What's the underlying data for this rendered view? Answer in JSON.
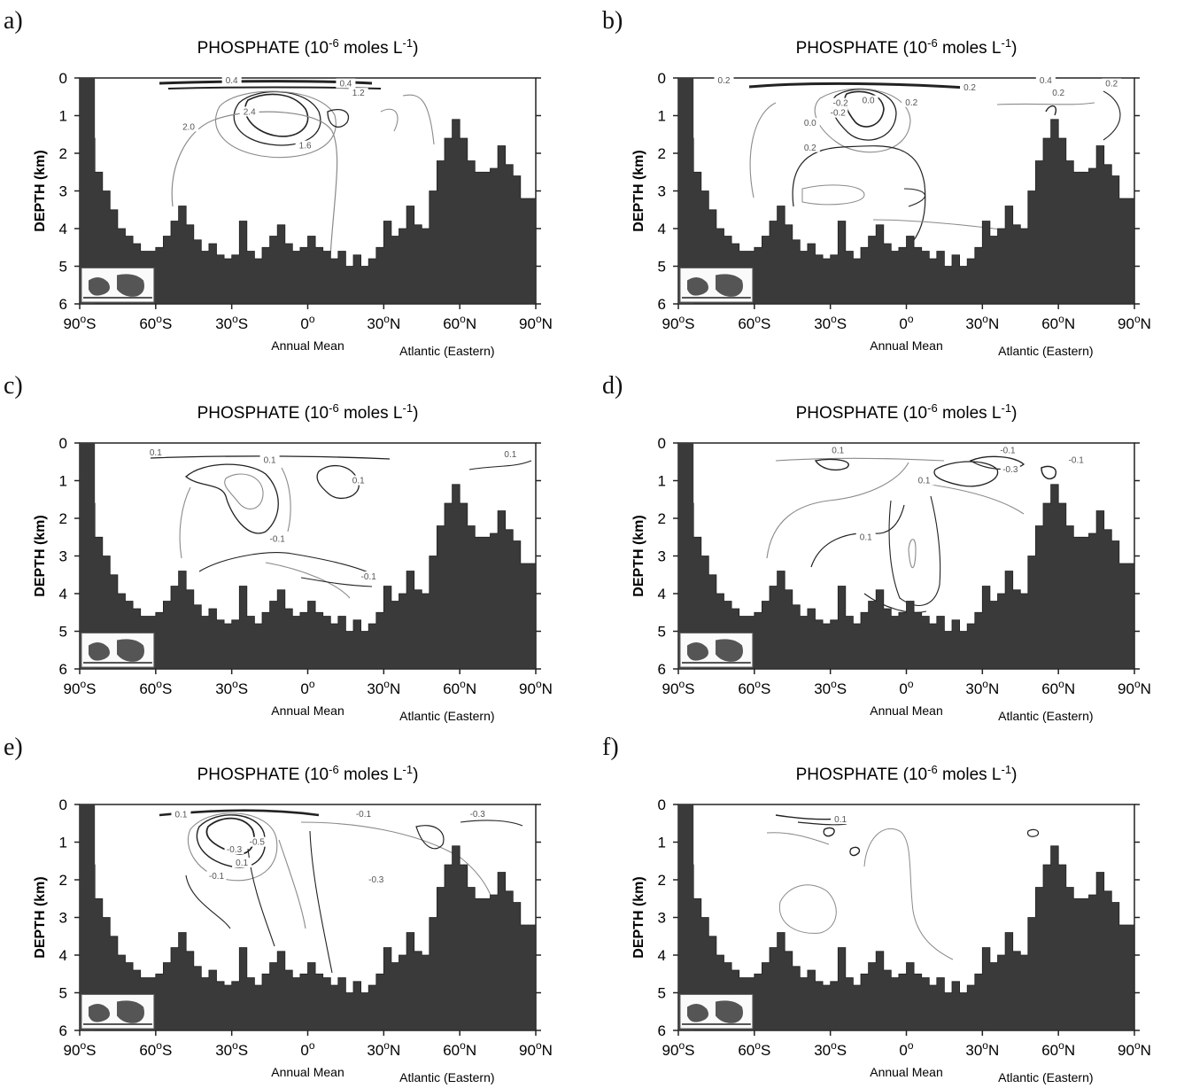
{
  "common": {
    "title": "PHOSPHATE (10",
    "title_exp": "-6",
    "title_unit": " moles L",
    "title_unit_exp": "-1",
    "title_close": ")",
    "ylabel": "DEPTH (km)",
    "sublabel_left": "Annual Mean",
    "sublabel_right": "Atlantic (Eastern)",
    "x_ticks": [
      {
        "deg": "90",
        "hemi": "S",
        "lat": -90
      },
      {
        "deg": "60",
        "hemi": "S",
        "lat": -60
      },
      {
        "deg": "30",
        "hemi": "S",
        "lat": -30
      },
      {
        "deg": "0",
        "hemi": "",
        "lat": 0
      },
      {
        "deg": "30",
        "hemi": "N",
        "lat": 30
      },
      {
        "deg": "60",
        "hemi": "N",
        "lat": 60
      },
      {
        "deg": "90",
        "hemi": "N",
        "lat": 90
      }
    ],
    "y_ticks": [
      "0",
      "1",
      "2",
      "3",
      "4",
      "5",
      "6"
    ],
    "colors": {
      "bathymetry": "#3a3a3a",
      "contour_dark": "#222222",
      "contour_light": "#8a8a8a"
    }
  },
  "chart_data": [
    {
      "panel": "a)",
      "type": "contour",
      "xlim": [
        -90,
        90
      ],
      "ylim": [
        6,
        0
      ],
      "contour_labels": [
        {
          "text": "0.4",
          "lat": -30,
          "depth": 0.12
        },
        {
          "text": "0.4",
          "lat": 15,
          "depth": 0.2
        },
        {
          "text": "1.2",
          "lat": 20,
          "depth": 0.45
        },
        {
          "text": "2.4",
          "lat": -23,
          "depth": 0.95
        },
        {
          "text": "2.0",
          "lat": -47,
          "depth": 1.35
        },
        {
          "text": "1.6",
          "lat": -1,
          "depth": 1.85
        }
      ],
      "bathymetry_km": [
        5.0,
        1.6,
        2.5,
        3.0,
        3.5,
        4.0,
        4.2,
        4.4,
        4.6,
        4.6,
        4.5,
        4.2,
        3.8,
        3.4,
        3.9,
        4.3,
        4.6,
        4.4,
        4.7,
        4.8,
        4.7,
        3.8,
        4.6,
        4.8,
        4.5,
        4.2,
        3.9,
        4.4,
        4.6,
        4.5,
        4.2,
        4.5,
        4.6,
        4.8,
        4.6,
        5.0,
        4.7,
        5.0,
        4.8,
        4.5,
        3.8,
        4.2,
        4.0,
        3.4,
        3.9,
        4.0,
        3.0,
        2.2,
        1.6,
        1.1,
        1.6,
        2.2,
        2.5,
        2.5,
        2.4,
        1.8,
        2.3,
        2.6,
        3.2,
        3.2
      ]
    },
    {
      "panel": "b)",
      "type": "contour",
      "xlim": [
        -90,
        90
      ],
      "ylim": [
        6,
        0
      ],
      "contour_labels": [
        {
          "text": "0.2",
          "lat": -72,
          "depth": 0.12
        },
        {
          "text": "-0.2",
          "lat": -26,
          "depth": 0.72
        },
        {
          "text": "-0.2",
          "lat": -27,
          "depth": 0.98
        },
        {
          "text": "0.0",
          "lat": -15,
          "depth": 0.65
        },
        {
          "text": "0.2",
          "lat": 2,
          "depth": 0.7
        },
        {
          "text": "0.0",
          "lat": -38,
          "depth": 1.25
        },
        {
          "text": "0.2",
          "lat": -38,
          "depth": 1.9
        },
        {
          "text": "0.2",
          "lat": 25,
          "depth": 0.3
        },
        {
          "text": "0.4",
          "lat": 55,
          "depth": 0.12
        },
        {
          "text": "0.2",
          "lat": 60,
          "depth": 0.45
        },
        {
          "text": "0.2",
          "lat": 81,
          "depth": 0.2
        }
      ],
      "bathymetry_km": [
        5.0,
        1.6,
        2.5,
        3.0,
        3.5,
        4.0,
        4.2,
        4.4,
        4.6,
        4.6,
        4.5,
        4.2,
        3.8,
        3.4,
        3.9,
        4.3,
        4.6,
        4.4,
        4.7,
        4.8,
        4.7,
        3.8,
        4.6,
        4.8,
        4.5,
        4.2,
        3.9,
        4.4,
        4.6,
        4.5,
        4.2,
        4.5,
        4.6,
        4.8,
        4.6,
        5.0,
        4.7,
        5.0,
        4.8,
        4.5,
        3.8,
        4.2,
        4.0,
        3.4,
        3.9,
        4.0,
        3.0,
        2.2,
        1.6,
        1.1,
        1.6,
        2.2,
        2.5,
        2.5,
        2.4,
        1.8,
        2.3,
        2.6,
        3.2,
        3.2
      ]
    },
    {
      "panel": "c)",
      "type": "contour",
      "xlim": [
        -90,
        90
      ],
      "ylim": [
        6,
        0
      ],
      "contour_labels": [
        {
          "text": "0.1",
          "lat": -60,
          "depth": 0.3
        },
        {
          "text": "0.1",
          "lat": -15,
          "depth": 0.5
        },
        {
          "text": "0.1",
          "lat": 20,
          "depth": 1.05
        },
        {
          "text": "0.1",
          "lat": 80,
          "depth": 0.35
        },
        {
          "text": "-0.1",
          "lat": -12,
          "depth": 2.6
        },
        {
          "text": "-0.1",
          "lat": 24,
          "depth": 3.6
        }
      ],
      "bathymetry_km": [
        5.0,
        1.6,
        2.5,
        3.0,
        3.5,
        4.0,
        4.2,
        4.4,
        4.6,
        4.6,
        4.5,
        4.2,
        3.8,
        3.4,
        3.9,
        4.3,
        4.6,
        4.4,
        4.7,
        4.8,
        4.7,
        3.8,
        4.6,
        4.8,
        4.5,
        4.2,
        3.9,
        4.4,
        4.6,
        4.5,
        4.2,
        4.5,
        4.6,
        4.8,
        4.6,
        5.0,
        4.7,
        5.0,
        4.8,
        4.5,
        3.8,
        4.2,
        4.0,
        3.4,
        3.9,
        4.0,
        3.0,
        2.2,
        1.6,
        1.1,
        1.6,
        2.2,
        2.5,
        2.5,
        2.4,
        1.8,
        2.3,
        2.6,
        3.2,
        3.2
      ]
    },
    {
      "panel": "d)",
      "type": "contour",
      "xlim": [
        -90,
        90
      ],
      "ylim": [
        6,
        0
      ],
      "contour_labels": [
        {
          "text": "0.1",
          "lat": -27,
          "depth": 0.25
        },
        {
          "text": "-0.1",
          "lat": 40,
          "depth": 0.25
        },
        {
          "text": "-0.3",
          "lat": 41,
          "depth": 0.75
        },
        {
          "text": "-0.1",
          "lat": 67,
          "depth": 0.5
        },
        {
          "text": "0.1",
          "lat": 7,
          "depth": 1.05
        },
        {
          "text": "0.1",
          "lat": -16,
          "depth": 2.55
        }
      ],
      "bathymetry_km": [
        5.0,
        1.6,
        2.5,
        3.0,
        3.5,
        4.0,
        4.2,
        4.4,
        4.6,
        4.6,
        4.5,
        4.2,
        3.8,
        3.4,
        3.9,
        4.3,
        4.6,
        4.4,
        4.7,
        4.8,
        4.7,
        3.8,
        4.6,
        4.8,
        4.5,
        4.2,
        3.9,
        4.4,
        4.6,
        4.5,
        4.2,
        4.5,
        4.6,
        4.8,
        4.6,
        5.0,
        4.7,
        5.0,
        4.8,
        4.5,
        3.8,
        4.2,
        4.0,
        3.4,
        3.9,
        4.0,
        3.0,
        2.2,
        1.6,
        1.1,
        1.6,
        2.2,
        2.5,
        2.5,
        2.4,
        1.8,
        2.3,
        2.6,
        3.2,
        3.2
      ]
    },
    {
      "panel": "e)",
      "type": "contour",
      "xlim": [
        -90,
        90
      ],
      "ylim": [
        6,
        0
      ],
      "contour_labels": [
        {
          "text": "0.1",
          "lat": -50,
          "depth": 0.32
        },
        {
          "text": "-0.5",
          "lat": -20,
          "depth": 1.05
        },
        {
          "text": "-0.3",
          "lat": -29,
          "depth": 1.25
        },
        {
          "text": "0.1",
          "lat": -26,
          "depth": 1.6
        },
        {
          "text": "-0.1",
          "lat": -36,
          "depth": 1.95
        },
        {
          "text": "-0.3",
          "lat": 27,
          "depth": 2.05
        },
        {
          "text": "-0.1",
          "lat": 22,
          "depth": 0.3
        },
        {
          "text": "-0.3",
          "lat": 67,
          "depth": 0.3
        }
      ],
      "bathymetry_km": [
        5.0,
        1.6,
        2.5,
        3.0,
        3.5,
        4.0,
        4.2,
        4.4,
        4.6,
        4.6,
        4.5,
        4.2,
        3.8,
        3.4,
        3.9,
        4.3,
        4.6,
        4.4,
        4.7,
        4.8,
        4.7,
        3.8,
        4.6,
        4.8,
        4.5,
        4.2,
        3.9,
        4.4,
        4.6,
        4.5,
        4.2,
        4.5,
        4.6,
        4.8,
        4.6,
        5.0,
        4.7,
        5.0,
        4.8,
        4.5,
        3.8,
        4.2,
        4.0,
        3.4,
        3.9,
        4.0,
        3.0,
        2.2,
        1.6,
        1.1,
        1.6,
        2.2,
        2.5,
        2.5,
        2.4,
        1.8,
        2.3,
        2.6,
        3.2,
        3.2
      ]
    },
    {
      "panel": "f)",
      "type": "contour",
      "xlim": [
        -90,
        90
      ],
      "ylim": [
        6,
        0
      ],
      "contour_labels": [
        {
          "text": "0.1",
          "lat": -26,
          "depth": 0.45
        }
      ],
      "bathymetry_km": [
        5.0,
        1.6,
        2.5,
        3.0,
        3.5,
        4.0,
        4.2,
        4.4,
        4.6,
        4.6,
        4.5,
        4.2,
        3.8,
        3.4,
        3.9,
        4.3,
        4.6,
        4.4,
        4.7,
        4.8,
        4.7,
        3.8,
        4.6,
        4.8,
        4.5,
        4.2,
        3.9,
        4.4,
        4.6,
        4.5,
        4.2,
        4.5,
        4.6,
        4.8,
        4.6,
        5.0,
        4.7,
        5.0,
        4.8,
        4.5,
        3.8,
        4.2,
        4.0,
        3.4,
        3.9,
        4.0,
        3.0,
        2.2,
        1.6,
        1.1,
        1.6,
        2.2,
        2.5,
        2.5,
        2.4,
        1.8,
        2.3,
        2.6,
        3.2,
        3.2
      ]
    }
  ]
}
